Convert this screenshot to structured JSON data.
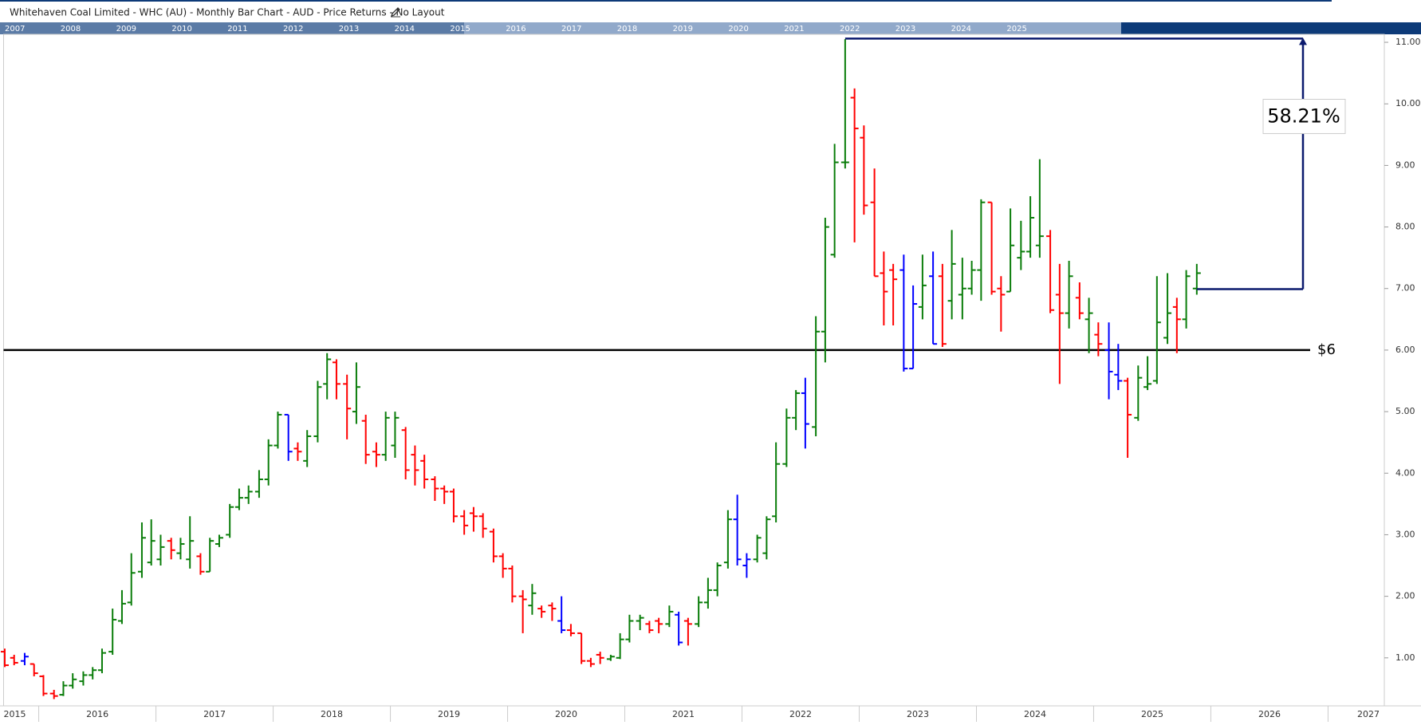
{
  "chart_data": {
    "type": "ohlc",
    "title": "Whitehaven Coal Limited - WHC (AU) - Monthly Bar Chart - AUD - Price Returns - No Layout",
    "navigator_years": [
      2007,
      2008,
      2009,
      2010,
      2011,
      2012,
      2013,
      2014,
      2015,
      2016,
      2017,
      2018,
      2019,
      2020,
      2021,
      2022,
      2023,
      2024,
      2025
    ],
    "xlim": [
      2015.7,
      2027.48
    ],
    "xticks": [
      2015,
      2016,
      2017,
      2018,
      2019,
      2020,
      2021,
      2022,
      2023,
      2024,
      2025,
      2026,
      2027
    ],
    "ylim": [
      0.22,
      11.13
    ],
    "yticks": [
      {
        "value": 1,
        "label": "1.00"
      },
      {
        "value": 2,
        "label": "2.00"
      },
      {
        "value": 3,
        "label": "3.00"
      },
      {
        "value": 4,
        "label": "4.00"
      },
      {
        "value": 5,
        "label": "5.00"
      },
      {
        "value": 6,
        "label": "6.00"
      },
      {
        "value": 7,
        "label": "7.00"
      },
      {
        "value": 8,
        "label": "8.00"
      },
      {
        "value": 9,
        "label": "9.00"
      },
      {
        "value": 10,
        "label": "10.00"
      },
      {
        "value": 11,
        "label": "11.00"
      }
    ],
    "x": [
      2015.71,
      2015.79,
      2015.88,
      2015.96,
      2016.04,
      2016.13,
      2016.21,
      2016.29,
      2016.38,
      2016.46,
      2016.54,
      2016.63,
      2016.71,
      2016.79,
      2016.88,
      2016.96,
      2017.04,
      2017.13,
      2017.21,
      2017.29,
      2017.38,
      2017.46,
      2017.54,
      2017.63,
      2017.71,
      2017.79,
      2017.88,
      2017.96,
      2018.04,
      2018.13,
      2018.21,
      2018.29,
      2018.38,
      2018.46,
      2018.54,
      2018.63,
      2018.71,
      2018.79,
      2018.88,
      2018.96,
      2019.04,
      2019.13,
      2019.21,
      2019.29,
      2019.38,
      2019.46,
      2019.54,
      2019.63,
      2019.71,
      2019.79,
      2019.88,
      2019.96,
      2020.04,
      2020.13,
      2020.21,
      2020.29,
      2020.38,
      2020.46,
      2020.54,
      2020.63,
      2020.71,
      2020.79,
      2020.88,
      2020.96,
      2021.04,
      2021.13,
      2021.21,
      2021.29,
      2021.38,
      2021.46,
      2021.54,
      2021.63,
      2021.71,
      2021.79,
      2021.88,
      2021.96,
      2022.04,
      2022.13,
      2022.21,
      2022.29,
      2022.38,
      2022.46,
      2022.54,
      2022.63,
      2022.71,
      2022.79,
      2022.88,
      2022.96,
      2023.04,
      2023.13,
      2023.21,
      2023.29,
      2023.38,
      2023.46,
      2023.54,
      2023.63,
      2023.71,
      2023.79,
      2023.88,
      2023.96,
      2024.04,
      2024.13,
      2024.21,
      2024.29,
      2024.38,
      2024.46,
      2024.54,
      2024.63,
      2024.71,
      2024.79,
      2024.88,
      2024.96,
      2025.04,
      2025.13,
      2025.21,
      2025.29,
      2025.38,
      2025.46,
      2025.54,
      2025.63,
      2025.71,
      2025.79,
      2025.88
    ],
    "open": [
      1.1,
      1.0,
      0.95,
      0.9,
      0.7,
      0.42,
      0.4,
      0.55,
      0.62,
      0.72,
      0.8,
      1.1,
      1.6,
      1.9,
      2.4,
      2.55,
      2.6,
      2.9,
      2.7,
      2.6,
      2.65,
      2.4,
      2.85,
      3.0,
      3.45,
      3.6,
      3.7,
      3.9,
      4.45,
      4.95,
      4.4,
      4.2,
      4.6,
      5.45,
      5.8,
      5.45,
      5.0,
      4.85,
      4.35,
      4.3,
      4.45,
      4.7,
      4.3,
      4.2,
      3.9,
      3.75,
      3.7,
      3.3,
      3.35,
      3.3,
      3.05,
      2.65,
      2.45,
      2.0,
      1.85,
      1.8,
      1.85,
      1.6,
      1.45,
      1.4,
      0.95,
      1.05,
      0.98,
      1.0,
      1.3,
      1.6,
      1.55,
      1.6,
      1.55,
      1.7,
      1.6,
      1.55,
      1.9,
      2.1,
      2.55,
      3.25,
      2.5,
      2.6,
      2.7,
      3.3,
      4.15,
      4.9,
      5.3,
      4.75,
      6.3,
      7.55,
      9.05,
      10.1,
      9.45,
      8.4,
      7.25,
      7.3,
      7.3,
      5.7,
      6.7,
      7.2,
      7.2,
      6.8,
      6.9,
      7.0,
      7.3,
      8.4,
      7.0,
      6.95,
      7.5,
      7.6,
      7.7,
      7.85,
      6.9,
      6.6,
      6.85,
      6.5,
      6.25,
      6.0,
      5.6,
      5.5,
      4.9,
      5.4,
      5.5,
      6.2,
      6.7,
      6.5,
      7.0
    ],
    "high": [
      1.15,
      1.05,
      1.08,
      0.9,
      0.72,
      0.48,
      0.62,
      0.75,
      0.78,
      0.85,
      1.15,
      1.8,
      2.1,
      2.7,
      3.2,
      3.25,
      3.0,
      2.95,
      2.95,
      3.3,
      2.7,
      2.95,
      3.0,
      3.5,
      3.75,
      3.8,
      4.05,
      4.55,
      5.0,
      4.95,
      4.5,
      4.7,
      5.5,
      5.95,
      5.85,
      5.6,
      5.8,
      4.95,
      4.5,
      5.0,
      5.0,
      4.75,
      4.45,
      4.3,
      3.95,
      3.8,
      3.75,
      3.4,
      3.45,
      3.35,
      3.1,
      2.7,
      2.5,
      2.1,
      2.2,
      1.85,
      1.9,
      2.0,
      1.55,
      1.4,
      1.0,
      1.1,
      1.05,
      1.4,
      1.7,
      1.7,
      1.6,
      1.65,
      1.85,
      1.75,
      1.65,
      2.0,
      2.3,
      2.55,
      3.4,
      3.65,
      2.7,
      3.0,
      3.3,
      4.5,
      5.05,
      5.35,
      5.55,
      6.55,
      8.15,
      9.35,
      11.05,
      10.25,
      9.65,
      8.95,
      7.6,
      7.4,
      7.55,
      7.05,
      7.55,
      7.6,
      7.4,
      7.95,
      7.5,
      7.45,
      8.45,
      8.4,
      7.2,
      8.3,
      8.1,
      8.5,
      9.1,
      7.95,
      7.4,
      7.45,
      7.1,
      6.85,
      6.45,
      6.45,
      6.1,
      5.55,
      5.75,
      5.9,
      7.2,
      7.25,
      6.85,
      7.3,
      7.4
    ],
    "low": [
      0.85,
      0.88,
      0.88,
      0.7,
      0.38,
      0.33,
      0.38,
      0.5,
      0.55,
      0.65,
      0.75,
      1.05,
      1.55,
      1.85,
      2.3,
      2.5,
      2.5,
      2.6,
      2.6,
      2.45,
      2.35,
      2.4,
      2.8,
      2.95,
      3.4,
      3.5,
      3.6,
      3.8,
      4.4,
      4.2,
      4.2,
      4.1,
      4.5,
      5.2,
      5.2,
      4.55,
      4.8,
      4.15,
      4.1,
      4.2,
      4.25,
      3.9,
      3.8,
      3.75,
      3.55,
      3.5,
      3.2,
      3.0,
      3.05,
      2.95,
      2.55,
      2.3,
      1.9,
      1.4,
      1.7,
      1.65,
      1.6,
      1.4,
      1.35,
      0.9,
      0.85,
      0.9,
      0.95,
      0.98,
      1.25,
      1.45,
      1.4,
      1.4,
      1.5,
      1.2,
      1.2,
      1.5,
      1.8,
      2.0,
      2.45,
      2.5,
      2.3,
      2.55,
      2.6,
      3.2,
      4.1,
      4.7,
      4.4,
      4.6,
      5.8,
      7.5,
      8.95,
      7.75,
      8.2,
      7.2,
      6.4,
      6.4,
      5.65,
      5.7,
      6.5,
      6.1,
      6.05,
      6.5,
      6.5,
      6.9,
      6.8,
      6.9,
      6.3,
      6.95,
      7.3,
      7.5,
      7.5,
      6.6,
      5.45,
      6.35,
      6.5,
      5.95,
      5.9,
      5.2,
      5.35,
      4.25,
      4.85,
      5.35,
      5.45,
      6.1,
      5.95,
      6.35,
      6.9
    ],
    "close": [
      0.88,
      0.92,
      1.02,
      0.75,
      0.42,
      0.38,
      0.55,
      0.65,
      0.72,
      0.8,
      1.08,
      1.62,
      1.88,
      2.38,
      2.95,
      2.9,
      2.8,
      2.75,
      2.85,
      2.9,
      2.4,
      2.9,
      2.95,
      3.45,
      3.6,
      3.7,
      3.9,
      4.45,
      4.95,
      4.35,
      4.35,
      4.6,
      5.4,
      5.85,
      5.45,
      5.05,
      5.4,
      4.3,
      4.3,
      4.9,
      4.9,
      4.05,
      4.05,
      3.9,
      3.75,
      3.7,
      3.3,
      3.15,
      3.3,
      3.1,
      2.65,
      2.45,
      2.0,
      1.95,
      2.05,
      1.75,
      1.8,
      1.45,
      1.4,
      0.95,
      0.9,
      1.0,
      1.02,
      1.3,
      1.6,
      1.65,
      1.45,
      1.55,
      1.75,
      1.25,
      1.55,
      1.9,
      2.1,
      2.5,
      3.25,
      2.6,
      2.6,
      2.95,
      3.25,
      4.15,
      4.9,
      5.3,
      4.8,
      6.3,
      8.0,
      9.05,
      9.05,
      9.6,
      8.35,
      7.2,
      6.95,
      7.15,
      5.7,
      6.75,
      7.05,
      6.1,
      6.1,
      7.4,
      7.0,
      7.3,
      8.4,
      6.95,
      6.9,
      7.7,
      7.6,
      8.15,
      7.85,
      6.65,
      6.6,
      7.2,
      6.6,
      6.6,
      6.1,
      5.65,
      5.5,
      4.95,
      5.55,
      5.45,
      6.45,
      6.6,
      6.5,
      7.2,
      7.25
    ],
    "colors": [
      "#f00",
      "#f00",
      "#00f",
      "#f00",
      "#f00",
      "#f00",
      "#0a7d0a",
      "#0a7d0a",
      "#0a7d0a",
      "#0a7d0a",
      "#0a7d0a",
      "#0a7d0a",
      "#0a7d0a",
      "#0a7d0a",
      "#0a7d0a",
      "#0a7d0a",
      "#0a7d0a",
      "#f00",
      "#0a7d0a",
      "#0a7d0a",
      "#f00",
      "#0a7d0a",
      "#0a7d0a",
      "#0a7d0a",
      "#0a7d0a",
      "#0a7d0a",
      "#0a7d0a",
      "#0a7d0a",
      "#0a7d0a",
      "#00f",
      "#f00",
      "#0a7d0a",
      "#0a7d0a",
      "#0a7d0a",
      "#f00",
      "#f00",
      "#0a7d0a",
      "#f00",
      "#f00",
      "#0a7d0a",
      "#0a7d0a",
      "#f00",
      "#f00",
      "#f00",
      "#f00",
      "#f00",
      "#f00",
      "#f00",
      "#f00",
      "#f00",
      "#f00",
      "#f00",
      "#f00",
      "#f00",
      "#0a7d0a",
      "#f00",
      "#f00",
      "#00f",
      "#f00",
      "#f00",
      "#f00",
      "#f00",
      "#0a7d0a",
      "#0a7d0a",
      "#0a7d0a",
      "#0a7d0a",
      "#f00",
      "#f00",
      "#0a7d0a",
      "#00f",
      "#f00",
      "#0a7d0a",
      "#0a7d0a",
      "#0a7d0a",
      "#0a7d0a",
      "#00f",
      "#00f",
      "#0a7d0a",
      "#0a7d0a",
      "#0a7d0a",
      "#0a7d0a",
      "#0a7d0a",
      "#00f",
      "#0a7d0a",
      "#0a7d0a",
      "#0a7d0a",
      "#0a7d0a",
      "#f00",
      "#f00",
      "#f00",
      "#f00",
      "#f00",
      "#00f",
      "#00f",
      "#0a7d0a",
      "#00f",
      "#f00",
      "#0a7d0a",
      "#0a7d0a",
      "#0a7d0a",
      "#0a7d0a",
      "#f00",
      "#f00",
      "#0a7d0a",
      "#0a7d0a",
      "#0a7d0a",
      "#0a7d0a",
      "#f00",
      "#f00",
      "#0a7d0a",
      "#f00",
      "#0a7d0a",
      "#f00",
      "#00f",
      "#00f",
      "#f00",
      "#0a7d0a",
      "#0a7d0a",
      "#0a7d0a",
      "#0a7d0a",
      "#f00",
      "#0a7d0a",
      "#0a7d0a"
    ],
    "hline": {
      "value": 6,
      "label": "$6"
    },
    "measure": {
      "label": "58.21%",
      "from": 6.99,
      "to": 11.06
    }
  }
}
